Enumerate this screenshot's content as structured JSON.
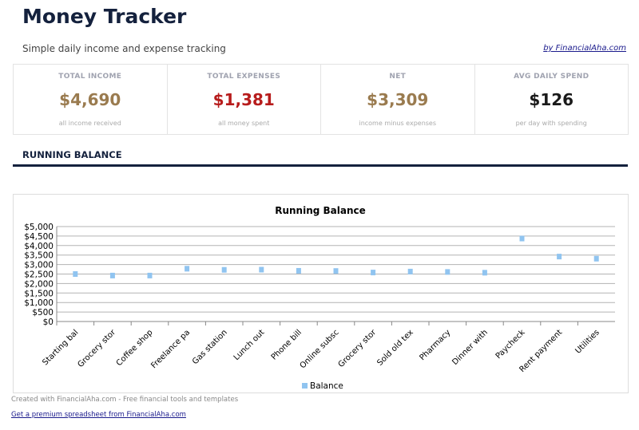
{
  "header": {
    "title": "Money Tracker",
    "subtitle": "Simple daily income and expense tracking",
    "byline": "by FinancialAha.com"
  },
  "cards": [
    {
      "label": "TOTAL INCOME",
      "value": "$4,690",
      "caption": "all income received",
      "color": "#9a7b4f"
    },
    {
      "label": "TOTAL EXPENSES",
      "value": "$1,381",
      "caption": "all money spent",
      "color": "#b71c1c"
    },
    {
      "label": "NET",
      "value": "$3,309",
      "caption": "income minus expenses",
      "color": "#9a7b4f"
    },
    {
      "label": "AVG DAILY SPEND",
      "value": "$126",
      "caption": "per day with spending",
      "color": "#1a1a1a"
    }
  ],
  "section_title": "RUNNING BALANCE",
  "chart_data": {
    "type": "scatter",
    "title": "Running Balance",
    "categories": [
      "Starting bal",
      "Grocery stor",
      "Coffee shop",
      "Freelance pa",
      "Gas station",
      "Lunch out",
      "Phone bill",
      "Online subsc",
      "Grocery stor",
      "Sold old tex",
      "Pharmacy",
      "Dinner with",
      "Paycheck",
      "Rent payment",
      "Utilities"
    ],
    "series": [
      {
        "name": "Balance",
        "values": [
          2500,
          2420,
          2420,
          2780,
          2720,
          2730,
          2670,
          2660,
          2580,
          2630,
          2610,
          2570,
          4370,
          3420,
          3309
        ],
        "color": "#90c4f0"
      }
    ],
    "yticks": [
      "$0",
      "$500",
      "$1,000",
      "$1,500",
      "$2,000",
      "$2,500",
      "$3,000",
      "$3,500",
      "$4,000",
      "$4,500",
      "$5,000"
    ],
    "ylim": [
      0,
      5000
    ],
    "grid": true,
    "legend": "bottom"
  },
  "footer": {
    "credit": "Created with FinancialAha.com - Free financial tools and templates",
    "link": "Get a premium spreadsheet from FinancialAha.com"
  }
}
